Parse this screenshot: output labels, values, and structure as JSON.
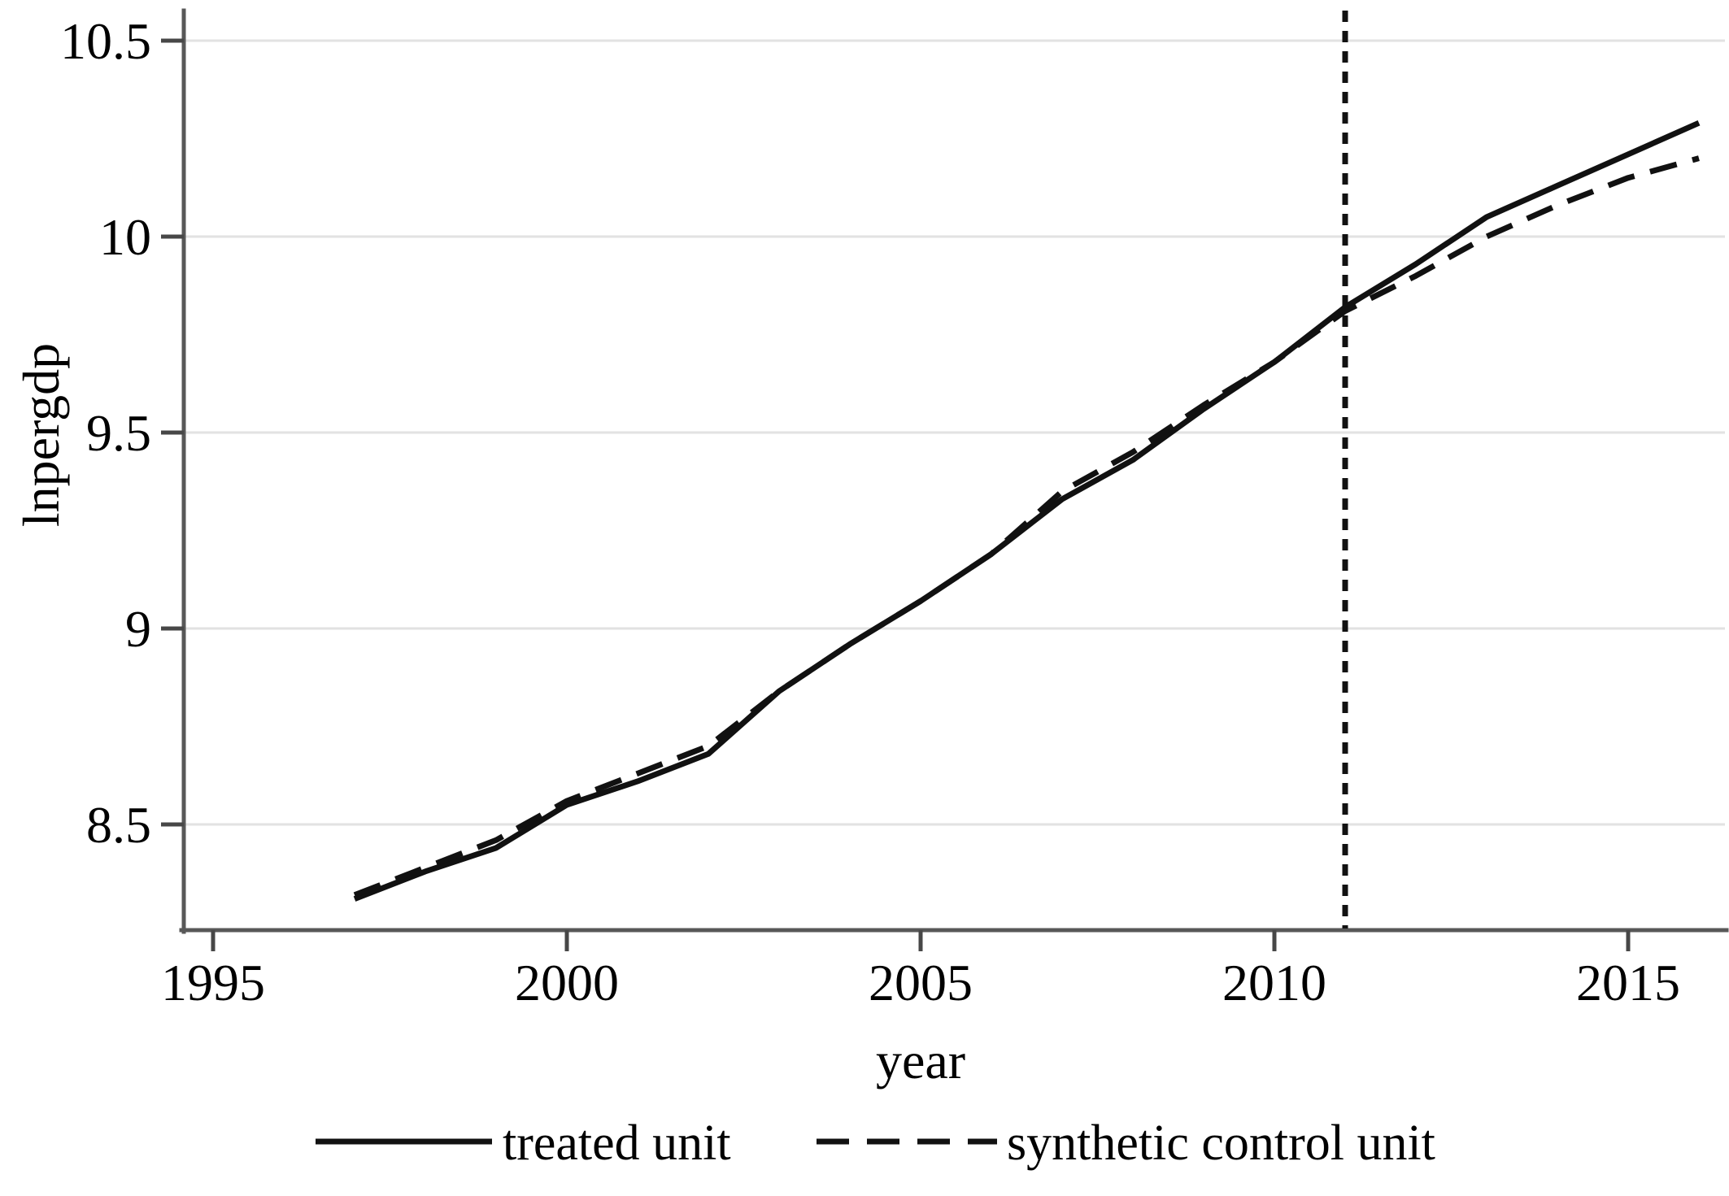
{
  "chart_data": {
    "type": "line",
    "title": "",
    "xlabel": "year",
    "ylabel": "lnpergdp",
    "xlim": [
      1994.6,
      2016.4
    ],
    "ylim": [
      8.23,
      10.58
    ],
    "grid": "horizontal",
    "legend_position": "bottom",
    "treatment_year": 2011,
    "treatment_line_style": "dotted-vertical",
    "xticks": {
      "values": [
        1995,
        2000,
        2005,
        2010,
        2015
      ],
      "labels": [
        "1995",
        "2000",
        "2005",
        "2010",
        "2015"
      ]
    },
    "yticks": {
      "values": [
        8.5,
        9,
        9.5,
        10,
        10.5
      ],
      "labels": [
        "8.5",
        "9",
        "9.5",
        "10",
        "10.5"
      ]
    },
    "x": [
      1997,
      1998,
      1999,
      2000,
      2001,
      2002,
      2003,
      2004,
      2005,
      2006,
      2007,
      2008,
      2009,
      2010,
      2011,
      2012,
      2013,
      2014,
      2015,
      2016
    ],
    "series": [
      {
        "name": "treated unit",
        "line_style": "solid",
        "color": "#111111",
        "values": [
          8.31,
          8.38,
          8.44,
          8.55,
          8.61,
          8.68,
          8.84,
          8.96,
          9.07,
          9.19,
          9.33,
          9.43,
          9.56,
          9.68,
          9.82,
          9.93,
          10.05,
          10.13,
          10.21,
          10.29
        ]
      },
      {
        "name": "synthetic control unit",
        "line_style": "dashed",
        "color": "#111111",
        "values": [
          8.32,
          8.39,
          8.46,
          8.56,
          8.63,
          8.7,
          8.84,
          8.96,
          9.07,
          9.19,
          9.35,
          9.45,
          9.57,
          9.68,
          9.81,
          9.9,
          10.0,
          10.08,
          10.15,
          10.2
        ]
      }
    ]
  }
}
